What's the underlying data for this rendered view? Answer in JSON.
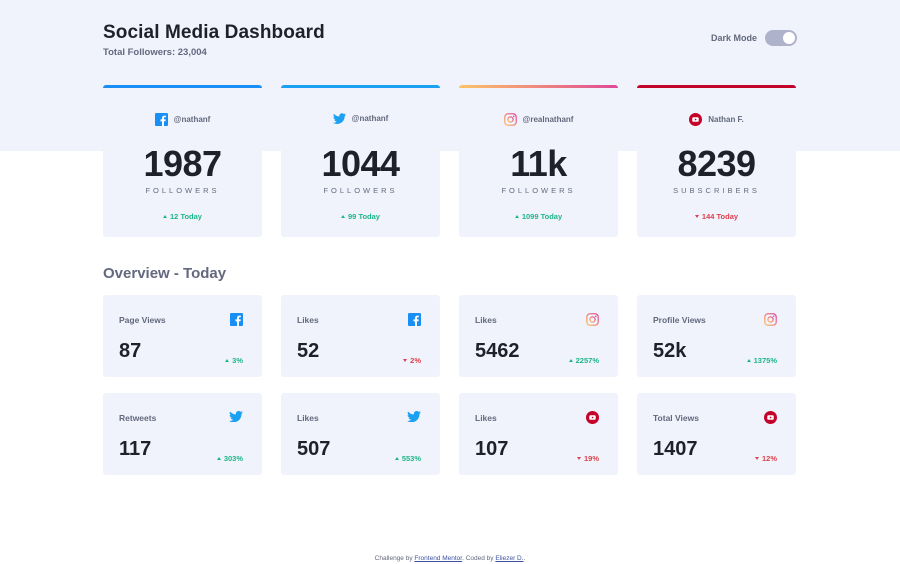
{
  "header": {
    "title": "Social Media Dashboard",
    "total_followers": "Total Followers: 23,004",
    "dark_mode_label": "Dark Mode"
  },
  "followers": [
    {
      "platform": "facebook",
      "icon": "facebook-icon",
      "handle": "@nathanf",
      "count": "1987",
      "label": "Followers",
      "change": "12 Today",
      "direction": "up",
      "accent": "#198ff5"
    },
    {
      "platform": "twitter",
      "icon": "twitter-icon",
      "handle": "@nathanf",
      "count": "1044",
      "label": "Followers",
      "change": "99 Today",
      "direction": "up",
      "accent": "#1ca0f2"
    },
    {
      "platform": "instagram",
      "icon": "instagram-icon",
      "handle": "@realnathanf",
      "count": "11k",
      "label": "Followers",
      "change": "1099 Today",
      "direction": "up",
      "accent": "#df4996"
    },
    {
      "platform": "youtube",
      "icon": "youtube-icon",
      "handle": "Nathan F.",
      "count": "8239",
      "label": "Subscribers",
      "change": "144 Today",
      "direction": "down",
      "accent": "#c4032a"
    }
  ],
  "overview": {
    "title": "Overview - Today",
    "cards": [
      {
        "metric": "Page Views",
        "icon": "facebook-icon",
        "value": "87",
        "change": "3%",
        "direction": "up"
      },
      {
        "metric": "Likes",
        "icon": "facebook-icon",
        "value": "52",
        "change": "2%",
        "direction": "down"
      },
      {
        "metric": "Likes",
        "icon": "instagram-icon",
        "value": "5462",
        "change": "2257%",
        "direction": "up"
      },
      {
        "metric": "Profile Views",
        "icon": "instagram-icon",
        "value": "52k",
        "change": "1375%",
        "direction": "up"
      },
      {
        "metric": "Retweets",
        "icon": "twitter-icon",
        "value": "117",
        "change": "303%",
        "direction": "up"
      },
      {
        "metric": "Likes",
        "icon": "twitter-icon",
        "value": "507",
        "change": "553%",
        "direction": "up"
      },
      {
        "metric": "Likes",
        "icon": "youtube-icon",
        "value": "107",
        "change": "19%",
        "direction": "down"
      },
      {
        "metric": "Total Views",
        "icon": "youtube-icon",
        "value": "1407",
        "change": "12%",
        "direction": "down"
      }
    ]
  },
  "footer": {
    "prefix": "Challenge by",
    "link1": "Frontend Mentor",
    "middle": ". Coded by",
    "link2": "Eliezer D.",
    "suffix": "."
  },
  "colors": {
    "up": "#1eb589",
    "down": "#dc414c",
    "facebook": "#198ff5",
    "twitter": "#1ca0f2",
    "instagram": "#df4996",
    "youtube": "#c4032a"
  }
}
